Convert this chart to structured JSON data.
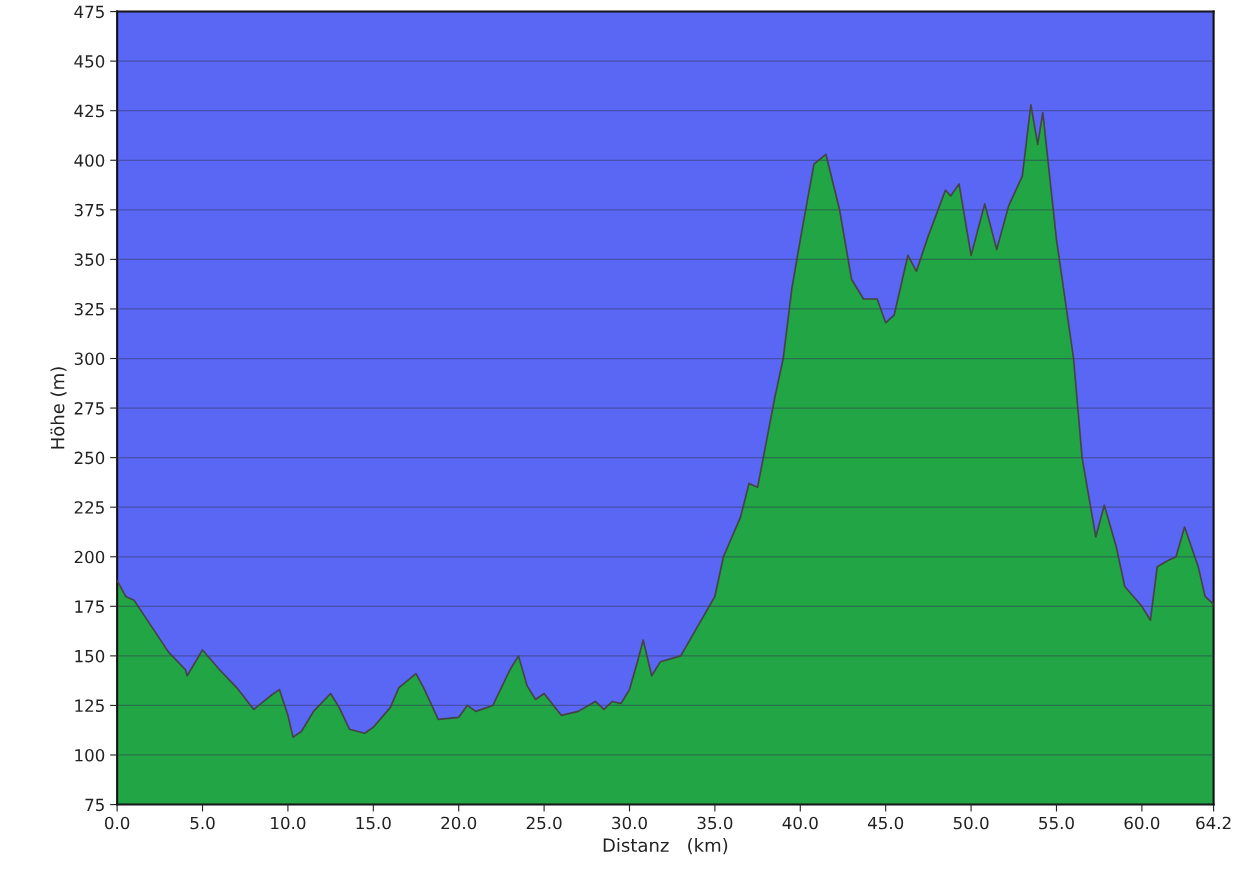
{
  "chart_data": {
    "type": "area",
    "xlabel": "Distanz   (km)",
    "ylabel": "Höhe (m)",
    "xlim": [
      0,
      64.2
    ],
    "ylim": [
      75,
      475
    ],
    "xticks": [
      {
        "value": 0,
        "label": "0.0"
      },
      {
        "value": 5,
        "label": "5.0"
      },
      {
        "value": 10,
        "label": "10.0"
      },
      {
        "value": 15,
        "label": "15.0"
      },
      {
        "value": 20,
        "label": "20.0"
      },
      {
        "value": 25,
        "label": "25.0"
      },
      {
        "value": 30,
        "label": "30.0"
      },
      {
        "value": 35,
        "label": "35.0"
      },
      {
        "value": 40,
        "label": "40.0"
      },
      {
        "value": 45,
        "label": "45.0"
      },
      {
        "value": 50,
        "label": "50.0"
      },
      {
        "value": 55,
        "label": "55.0"
      },
      {
        "value": 60,
        "label": "60.0"
      },
      64.2
    ],
    "yticks": [
      75,
      100,
      125,
      150,
      175,
      200,
      225,
      250,
      275,
      300,
      325,
      350,
      375,
      400,
      425,
      450,
      475
    ],
    "grid": "y",
    "series": [
      {
        "color": "#21a545",
        "x": [
          0,
          0.5,
          1.0,
          2.0,
          3.0,
          4.0,
          4.1,
          5.0,
          6.0,
          7.0,
          8.0,
          9.0,
          9.5,
          10.0,
          10.3,
          10.8,
          11.5,
          12.5,
          13.0,
          13.6,
          14.5,
          15.0,
          16.0,
          16.5,
          17.5,
          18.0,
          18.8,
          20.0,
          20.5,
          21.0,
          22.0,
          23.0,
          23.5,
          24.0,
          24.5,
          25.0,
          26.0,
          27.0,
          28.0,
          28.5,
          29.0,
          29.5,
          30.0,
          30.5,
          30.8,
          31.3,
          31.8,
          33.0,
          34.0,
          35.0,
          35.5,
          36.5,
          37.0,
          37.5,
          38.5,
          39.0,
          39.5,
          40.0,
          40.8,
          41.5,
          42.3,
          43.0,
          43.7,
          44.5,
          45.0,
          45.5,
          46.3,
          46.8,
          47.5,
          48.5,
          48.8,
          49.3,
          50.0,
          50.8,
          51.5,
          52.2,
          53.0,
          53.5,
          53.9,
          54.2,
          55.0,
          56.0,
          56.5,
          57.3,
          57.8,
          58.5,
          59.0,
          60.0,
          60.5,
          60.9,
          61.5,
          62.0,
          62.5,
          63.3,
          63.7,
          64.2
        ],
        "values": [
          188,
          180,
          178,
          165,
          152,
          143,
          140,
          153,
          143,
          134,
          123,
          130,
          133,
          120,
          109,
          112,
          122,
          131,
          124,
          113,
          111,
          114,
          124,
          134,
          141,
          133,
          118,
          119,
          125,
          122,
          125,
          143,
          150,
          135,
          128,
          131,
          120,
          122,
          127,
          123,
          127,
          126,
          133,
          148,
          158,
          140,
          147,
          150,
          165,
          180,
          200,
          220,
          237,
          235,
          280,
          300,
          335,
          360,
          398,
          403,
          375,
          340,
          330,
          330,
          318,
          322,
          352,
          344,
          362,
          385,
          382,
          388,
          352,
          378,
          355,
          377,
          392,
          428,
          408,
          424,
          360,
          300,
          250,
          210,
          226,
          205,
          185,
          175,
          168,
          195,
          198,
          200,
          215,
          195,
          180,
          176
        ]
      }
    ]
  }
}
